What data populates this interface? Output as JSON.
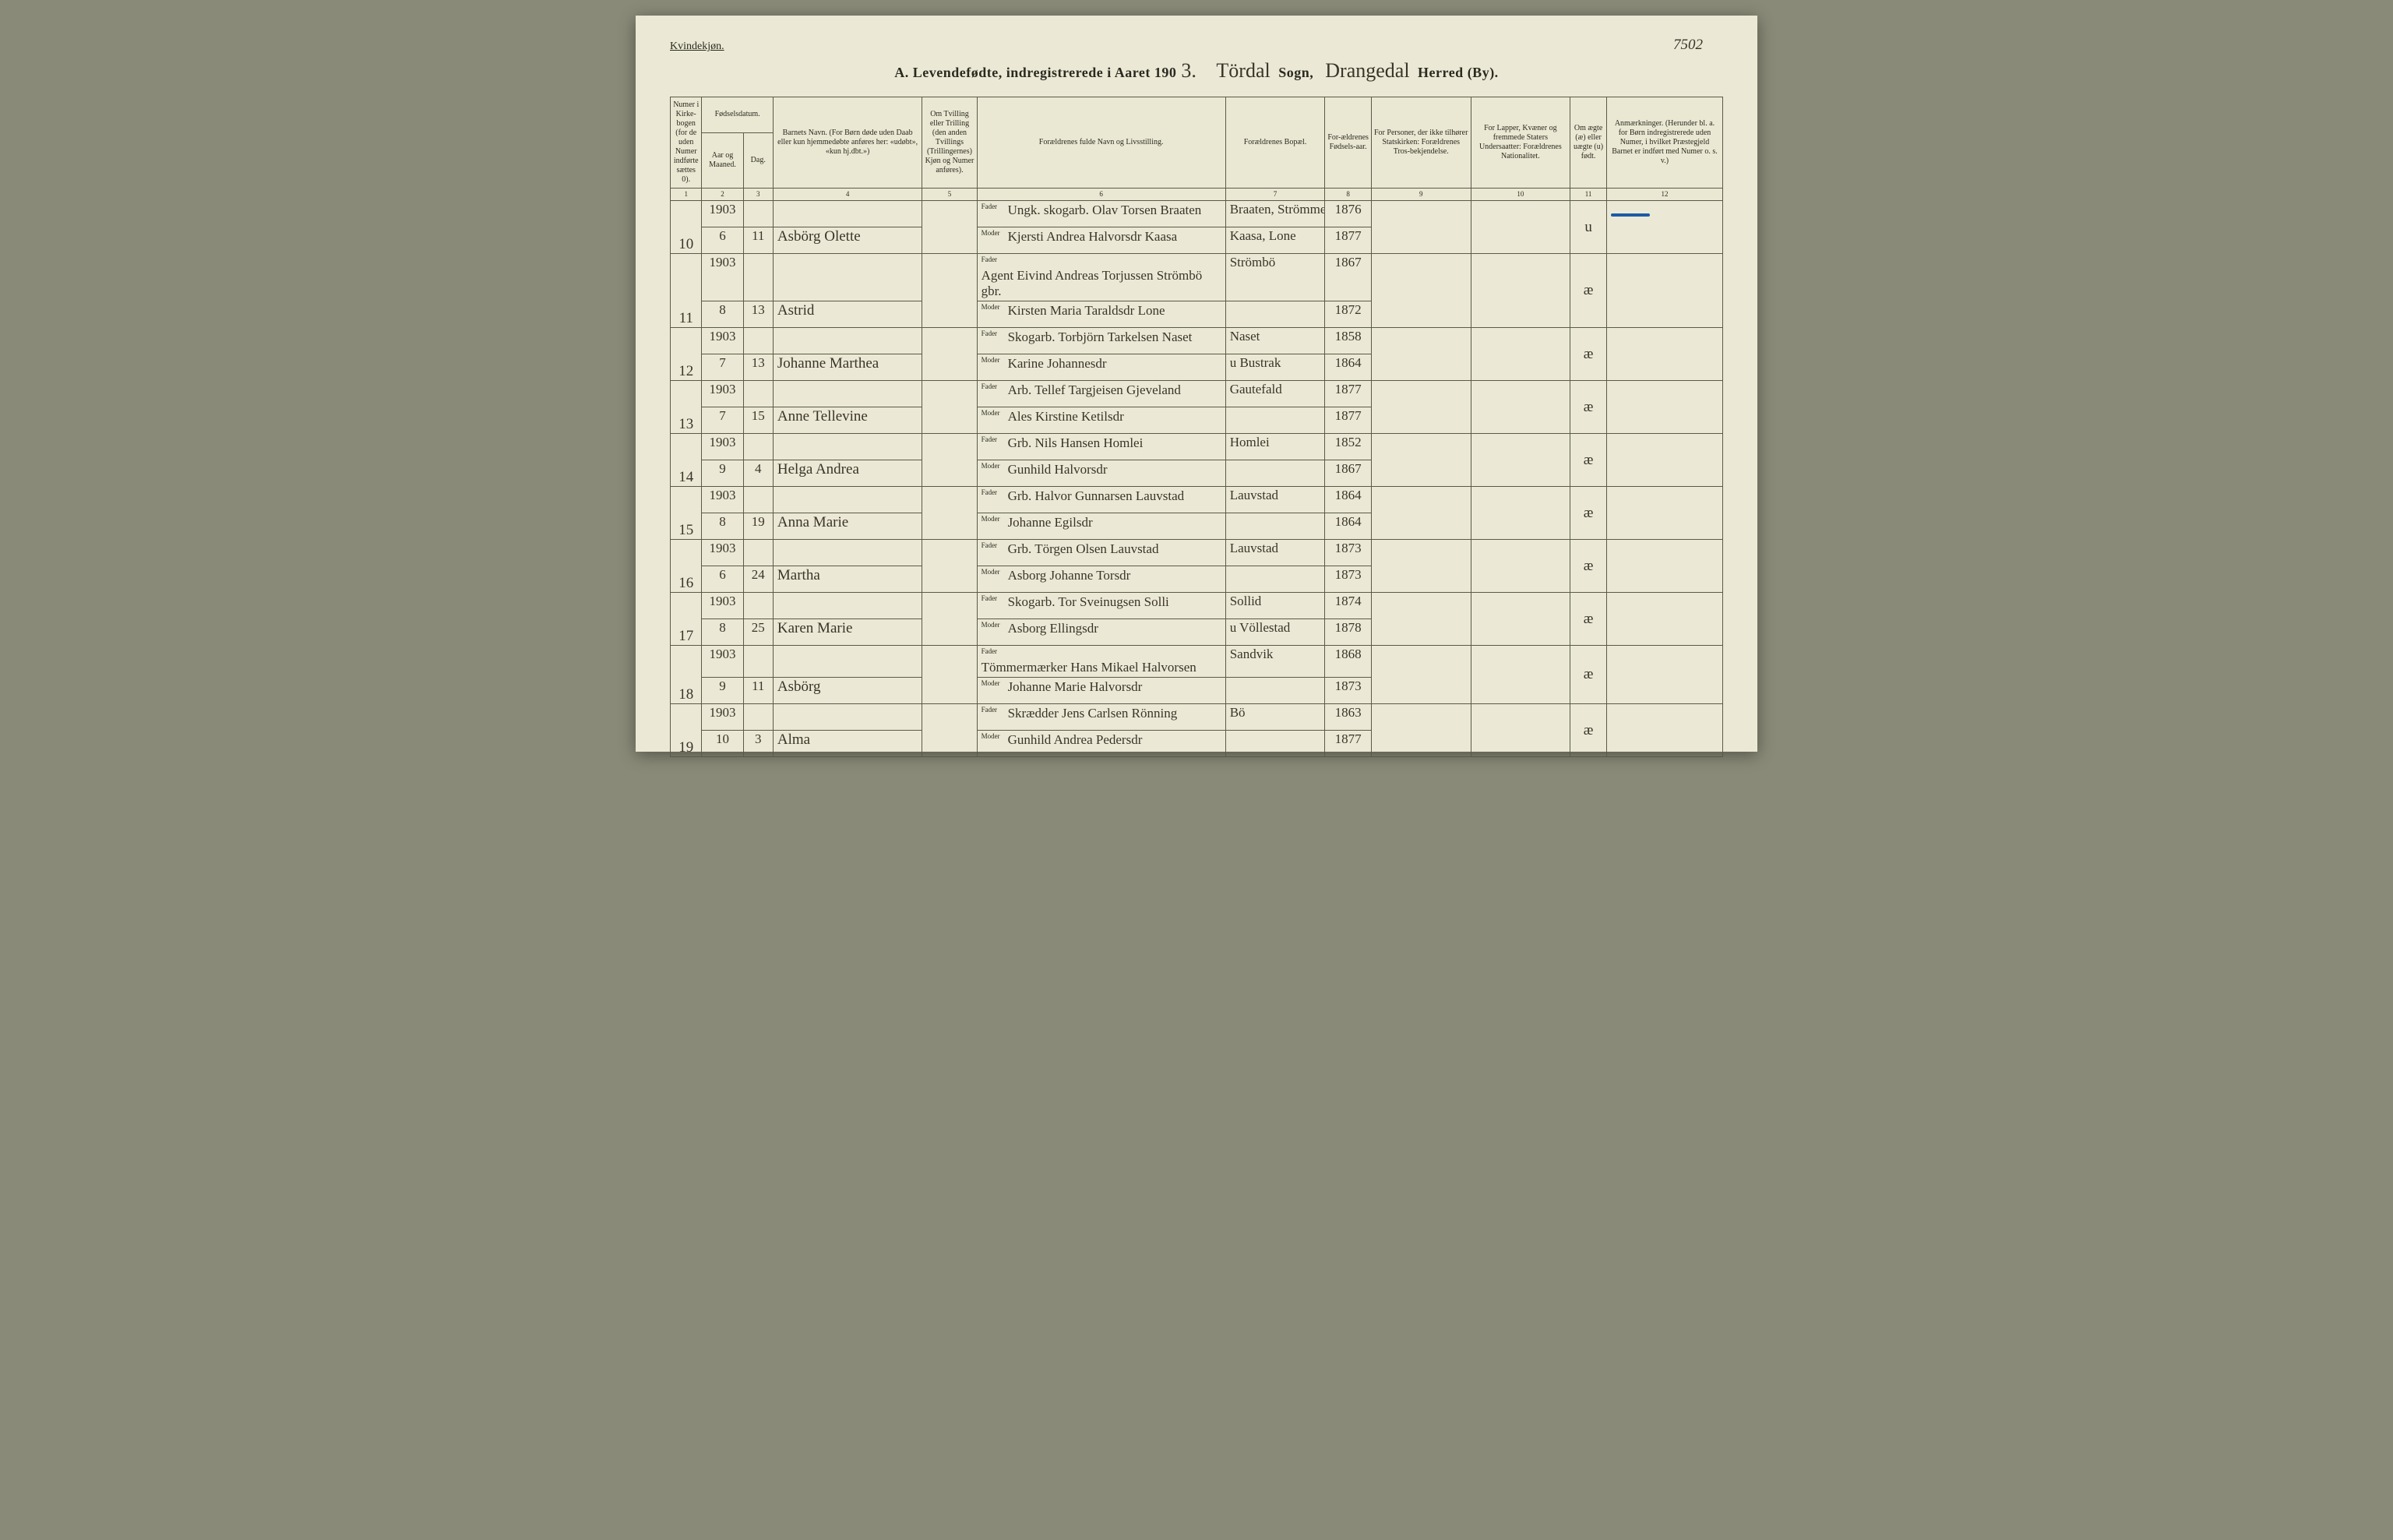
{
  "gender_label": "Kvindekjøn.",
  "page_number_handwritten": "7502",
  "title": {
    "prefix": "A.  Levendefødte, indregistrerede i Aaret 190",
    "year_digit": "3.",
    "sogn_handwritten": "Tördal",
    "sogn_label": "Sogn,",
    "herred_handwritten": "Drangedal",
    "herred_label": "Herred (By)."
  },
  "headers": {
    "c1": "Numer i Kirke-bogen (for de uden Numer indførte sættes 0).",
    "c2_group": "Fødselsdatum.",
    "c2": "Aar og Maaned.",
    "c3": "Dag.",
    "c4": "Barnets Navn.\n(For Børn døde uden Daab eller kun hjemmedøbte anføres her: «udøbt», «kun hj.dbt.»)",
    "c5": "Om Tvilling eller Trilling (den anden Tvillings (Trillingernes) Kjøn og Numer anføres).",
    "c6": "Forældrenes fulde Navn og Livsstilling.",
    "c7": "Forældrenes Bopæl.",
    "c8": "For-ældrenes Fødsels-aar.",
    "c9": "For Personer, der ikke tilhører Statskirken:\nForældrenes Tros-bekjendelse.",
    "c10": "For Lapper, Kvæner og fremmede Staters Undersaatter:\nForældrenes Nationalitet.",
    "c11": "Om ægte (æ) eller uægte (u) født.",
    "c12": "Anmærkninger.\n(Herunder bl. a. for Børn indregistrerede uden Numer, i hvilket Præstegjeld Barnet er indført med Numer o. s. v.)"
  },
  "colnums": [
    "1",
    "2",
    "3",
    "4",
    "5",
    "6",
    "7",
    "8",
    "9",
    "10",
    "11",
    "12"
  ],
  "parent_labels": {
    "father": "Fader",
    "mother": "Moder"
  },
  "rows": [
    {
      "num": "10",
      "year": "1903",
      "month": "6",
      "day": "11",
      "name": "Asbörg Olette",
      "father": "Ungk. skogarb. Olav Torsen Braaten",
      "mother": "Kjersti Andrea Halvorsdr Kaasa",
      "bopal_f": "Braaten, Strömme",
      "bopal_m": "Kaasa, Lone",
      "fy": "1876",
      "my": "1877",
      "legit": "u",
      "remark": "—"
    },
    {
      "num": "11",
      "year": "1903",
      "month": "8",
      "day": "13",
      "name": "Astrid",
      "father": "Agent Eivind Andreas Torjussen Strömbö gbr.",
      "mother": "Kirsten Maria Taraldsdr Lone",
      "bopal_f": "Strömbö",
      "bopal_m": "",
      "fy": "1867",
      "my": "1872",
      "legit": "æ",
      "remark": ""
    },
    {
      "num": "12",
      "year": "1903",
      "month": "7",
      "day": "13",
      "name": "Johanne Marthea",
      "father": "Skogarb. Torbjörn Tarkelsen Naset",
      "mother": "Karine Johannesdr",
      "bopal_f": "Naset",
      "bopal_m": "u Bustrak",
      "fy": "1858",
      "my": "1864",
      "legit": "æ",
      "remark": ""
    },
    {
      "num": "13",
      "year": "1903",
      "month": "7",
      "day": "15",
      "name": "Anne Tellevine",
      "father": "Arb. Tellef Targjeisen Gjeveland",
      "mother": "Ales Kirstine Ketilsdr",
      "bopal_f": "Gautefald",
      "bopal_m": "",
      "fy": "1877",
      "my": "1877",
      "legit": "æ",
      "remark": ""
    },
    {
      "num": "14",
      "year": "1903",
      "month": "9",
      "day": "4",
      "name": "Helga Andrea",
      "father": "Grb. Nils Hansen Homlei",
      "mother": "Gunhild Halvorsdr",
      "bopal_f": "Homlei",
      "bopal_m": "",
      "fy": "1852",
      "my": "1867",
      "legit": "æ",
      "remark": ""
    },
    {
      "num": "15",
      "year": "1903",
      "month": "8",
      "day": "19",
      "name": "Anna Marie",
      "father": "Grb. Halvor Gunnarsen Lauvstad",
      "mother": "Johanne Egilsdr",
      "bopal_f": "Lauvstad",
      "bopal_m": "",
      "fy": "1864",
      "my": "1864",
      "legit": "æ",
      "remark": ""
    },
    {
      "num": "16",
      "year": "1903",
      "month": "6",
      "day": "24",
      "name": "Martha",
      "father": "Grb. Törgen Olsen Lauvstad",
      "mother": "Asborg Johanne Torsdr",
      "bopal_f": "Lauvstad",
      "bopal_m": "",
      "fy": "1873",
      "my": "1873",
      "legit": "æ",
      "remark": ""
    },
    {
      "num": "17",
      "year": "1903",
      "month": "8",
      "day": "25",
      "name": "Karen Marie",
      "father": "Skogarb. Tor Sveinugsen Solli",
      "mother": "Asborg Ellingsdr",
      "bopal_f": "Sollid",
      "bopal_m": "u Völlestad",
      "fy": "1874",
      "my": "1878",
      "legit": "æ",
      "remark": ""
    },
    {
      "num": "18",
      "year": "1903",
      "month": "9",
      "day": "11",
      "name": "Asbörg",
      "father": "Tömmermærker Hans Mikael Halvorsen",
      "mother": "Johanne Marie Halvorsdr",
      "bopal_f": "Sandvik",
      "bopal_m": "",
      "fy": "1868",
      "my": "1873",
      "legit": "æ",
      "remark": ""
    },
    {
      "num": "19",
      "year": "1903",
      "month": "10",
      "day": "3",
      "name": "Alma",
      "father": "Skrædder Jens Carlsen Rönning",
      "mother": "Gunhild Andrea Pedersdr",
      "bopal_f": "Bö",
      "bopal_m": "",
      "fy": "1863",
      "my": "1877",
      "legit": "æ",
      "remark": ""
    }
  ],
  "style": {
    "page_bg": "#ebe9d5",
    "border_color": "#5a5a48",
    "print_text": "#2a2a20",
    "cursive_color": "#3a342a",
    "blue_mark": "#1a5aa8",
    "header_fontsize": 10,
    "cursive_fontsize": 19
  }
}
